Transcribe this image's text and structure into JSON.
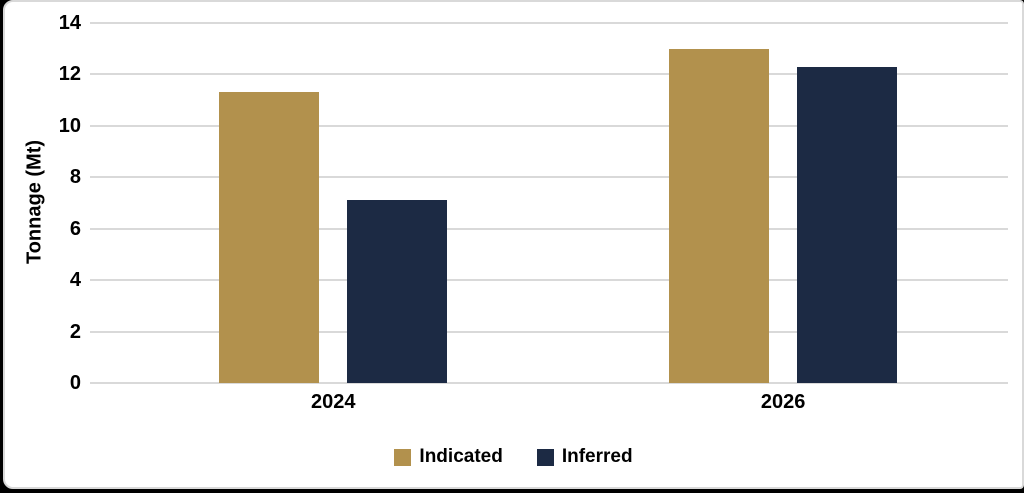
{
  "frame": {
    "background": "#ffffff",
    "border_color": "#d9d9d9",
    "outer_background": "#000000"
  },
  "chart_data": {
    "type": "bar",
    "title": "",
    "categories": [
      "2024",
      "2026"
    ],
    "series": [
      {
        "name": "Indicated",
        "color": "#B2914D",
        "values": [
          11.3,
          13.0
        ]
      },
      {
        "name": "Inferred",
        "color": "#1C2A44",
        "values": [
          7.1,
          12.3
        ]
      }
    ],
    "xlabel": "",
    "ylabel": "Tonnage (Mt)",
    "ylim": [
      0,
      14
    ],
    "yticks": [
      0,
      2,
      4,
      6,
      8,
      10,
      12,
      14
    ],
    "grid": true,
    "gridline_color": "#D9D9D9",
    "legend_position": "bottom",
    "bar_color_indicated": "#B2914D",
    "bar_color_inferred": "#1C2A44"
  }
}
